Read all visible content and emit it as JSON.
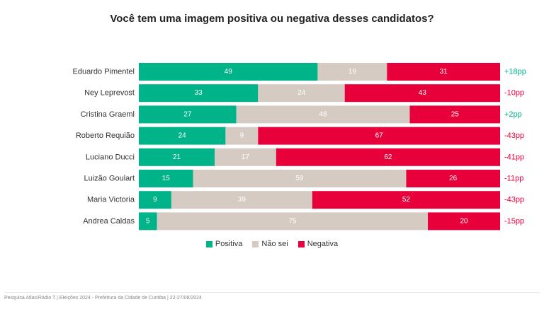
{
  "chart_data": {
    "type": "bar",
    "orientation": "horizontal-stacked-100",
    "title": "Você tem uma imagem positiva ou negativa desses candidatos?",
    "categories": [
      "Eduardo Pimentel",
      "Ney Leprevost",
      "Cristina Graeml",
      "Roberto Requião",
      "Luciano Ducci",
      "Luizão Goulart",
      "Maria Victoria",
      "Andrea Caldas"
    ],
    "series": [
      {
        "name": "Positiva",
        "color": "#00b388",
        "values": [
          49,
          33,
          27,
          24,
          21,
          15,
          9,
          5
        ]
      },
      {
        "name": "Não sei",
        "color": "#d6cbc3",
        "values": [
          19,
          24,
          48,
          9,
          17,
          59,
          39,
          75
        ]
      },
      {
        "name": "Negativa",
        "color": "#e8003a",
        "values": [
          31,
          43,
          25,
          67,
          62,
          26,
          52,
          20
        ]
      }
    ],
    "net_labels": [
      "+18pp",
      "-10pp",
      "+2pp",
      "-43pp",
      "-41pp",
      "-11pp",
      "-43pp",
      "-15pp"
    ],
    "net_colors": {
      "positive": "#00b388",
      "negative": "#e8003a"
    },
    "legend": "bottom-center",
    "grid": false
  },
  "footer": "Pesquisa Atlas/Rádio T  |  Eleições 2024 - Prefeitura da Cidade de Curitiba  |  22-27/08/2024"
}
